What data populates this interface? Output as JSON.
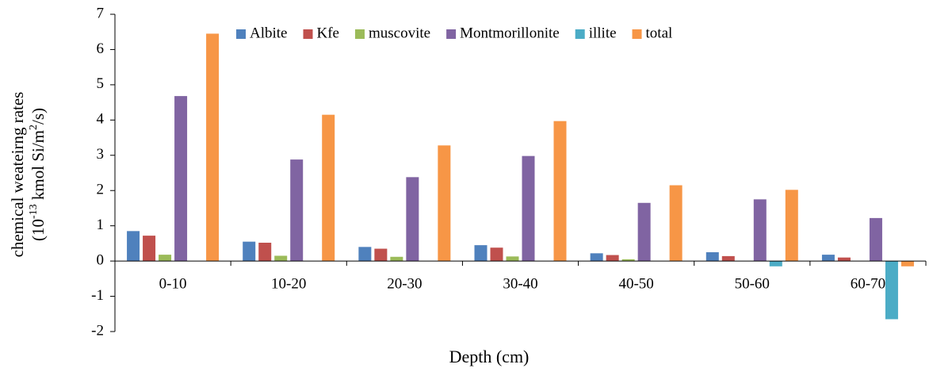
{
  "chart_data": {
    "type": "bar",
    "x_label": "Depth (cm)",
    "y_label": [
      "chemical weateirng rates",
      [
        "(10",
        "-13",
        " kmol Si/m",
        "2",
        "/s)"
      ]
    ],
    "categories": [
      "0-10",
      "10-20",
      "20-30",
      "30-40",
      "40-50",
      "50-60",
      "60-70"
    ],
    "series": [
      {
        "name": "Albite",
        "color": "#4f81bd",
        "values": [
          0.85,
          0.55,
          0.4,
          0.45,
          0.22,
          0.25,
          0.18
        ]
      },
      {
        "name": "Kfe",
        "color": "#c0504d",
        "values": [
          0.72,
          0.52,
          0.35,
          0.38,
          0.17,
          0.14,
          0.1
        ]
      },
      {
        "name": "muscovite",
        "color": "#9bbb59",
        "values": [
          0.18,
          0.15,
          0.12,
          0.13,
          0.05,
          0,
          0
        ]
      },
      {
        "name": "Montmorillonite",
        "color": "#8064a2",
        "values": [
          4.68,
          2.88,
          2.38,
          2.98,
          1.65,
          1.75,
          1.22
        ]
      },
      {
        "name": "illite",
        "color": "#4bacc6",
        "values": [
          0,
          0,
          0,
          0,
          0,
          -0.15,
          -1.65
        ]
      },
      {
        "name": "total",
        "color": "#f79646",
        "values": [
          6.45,
          4.15,
          3.28,
          3.97,
          2.15,
          2.02,
          -0.15
        ]
      }
    ],
    "ylim": [
      -2,
      7
    ],
    "yticks": [
      -2,
      -1,
      0,
      1,
      2,
      3,
      4,
      5,
      6,
      7
    ],
    "grid": false,
    "legend": "top"
  }
}
